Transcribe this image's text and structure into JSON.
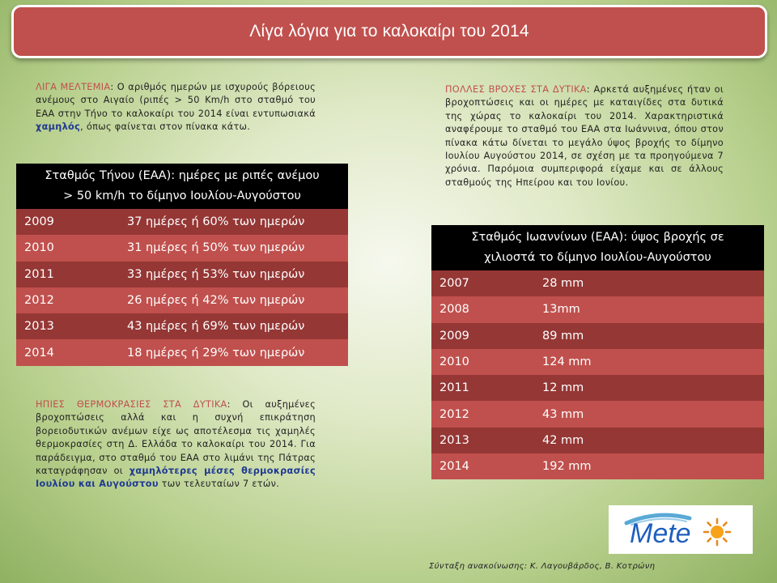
{
  "title": "Λίγα λόγια για το καλοκαίρι του 2014",
  "meltemia": {
    "heading": "ΛΙΓΑ ΜΕΛΤΕΜΙΑ",
    "text_before": ": Ο αριθμός ημερών με ισχυρούς βόρειους ανέμους στο Αιγαίο  (ριπές > 50 Km/h στο σταθμό του ΕΑΑ στην Τήνο το καλοκαίρι του 2014 είναι εντυπωσιακά ",
    "highlight": "χαμηλός",
    "text_after": ", όπως φαίνεται στον πίνακα κάτω."
  },
  "tinos_table": {
    "header_line1": "Σταθμός Τήνου (ΕΑΑ): ημέρες με ριπές ανέμου",
    "header_line2": "> 50 km/h  το δίμηνο Ιουλίου-Αυγούστου",
    "rows": [
      {
        "year": "2009",
        "value": "37 ημέρες ή 60% των ημερών"
      },
      {
        "year": "2010",
        "value": "31 ημέρες ή 50% των ημερών"
      },
      {
        "year": "2011",
        "value": "33 ημέρες ή 53% των ημερών"
      },
      {
        "year": "2012",
        "value": "26 ημέρες ή 42% των ημερών"
      },
      {
        "year": "2013",
        "value": "43 ημέρες ή 69% των ημερών"
      },
      {
        "year": "2014",
        "value": "18 ημέρες ή 29% των ημερών"
      }
    ]
  },
  "rain": {
    "heading": "ΠΟΛΛΕΣ ΒΡΟΧΕΣ ΣΤΑ ΔΥΤΙΚΑ",
    "text": ": Αρκετά αυξημένες ήταν οι βροχοπτώσεις και οι ημέρες με καταιγίδες στα δυτικά της χώρας το καλοκαίρι του 2014. Χαρακτηριστικά αναφέρουμε το σταθμό του ΕΑΑ στα Ιωάννινα, όπου στον πίνακα κάτω δίνεται το μεγάλο ύψος βροχής το δίμηνο Ιουλίου Αυγούστου 2014, σε σχέση με τα προηγούμενα 7 χρόνια. Παρόμοια συμπεριφορά είχαμε και σε άλλους σταθμούς της Ηπείρου και του Ιονίου."
  },
  "ioannina_table": {
    "header_line1": "Σταθμός Ιωαννίνων (ΕΑΑ): ύψος βροχής σε",
    "header_line2": "χιλιοστά το δίμηνο Ιουλίου-Αυγούστου",
    "rows": [
      {
        "year": "2007",
        "value": "28 mm"
      },
      {
        "year": "2008",
        "value": "13mm"
      },
      {
        "year": "2009",
        "value": "89 mm"
      },
      {
        "year": "2010",
        "value": "124 mm"
      },
      {
        "year": "2011",
        "value": "12 mm"
      },
      {
        "year": "2012",
        "value": "43 mm"
      },
      {
        "year": "2013",
        "value": "42 mm"
      },
      {
        "year": "2014",
        "value": "192 mm"
      }
    ]
  },
  "temps": {
    "heading": "ΗΠΙΕΣ ΘΕΡΜΟΚΡΑΣΙΕΣ ΣΤΑ ΔΥΤΙΚΑ",
    "text_before": ": Οι αυξημένες βροχοπτώσεις αλλά και η συχνή επικράτηση βορειοδυτικών ανέμων είχε ως αποτέλεσμα τις χαμηλές θερμοκρασίες στη Δ. Ελλάδα το καλοκαίρι του 2014. Για παράδειγμα, στο σταθμό του ΕΑΑ στο λιμάνι της Πάτρας καταγράφησαν οι ",
    "highlight": "χαμηλότερες μέσες θερμοκρασίες Ιουλίου και Αυγούστου",
    "text_after": " των τελευταίων 7 ετών."
  },
  "logo_text": "Mete",
  "footer": "Σύνταξη ανακοίνωσης: Κ. Λαγουβάρδος, Β. Κοτρώνη"
}
